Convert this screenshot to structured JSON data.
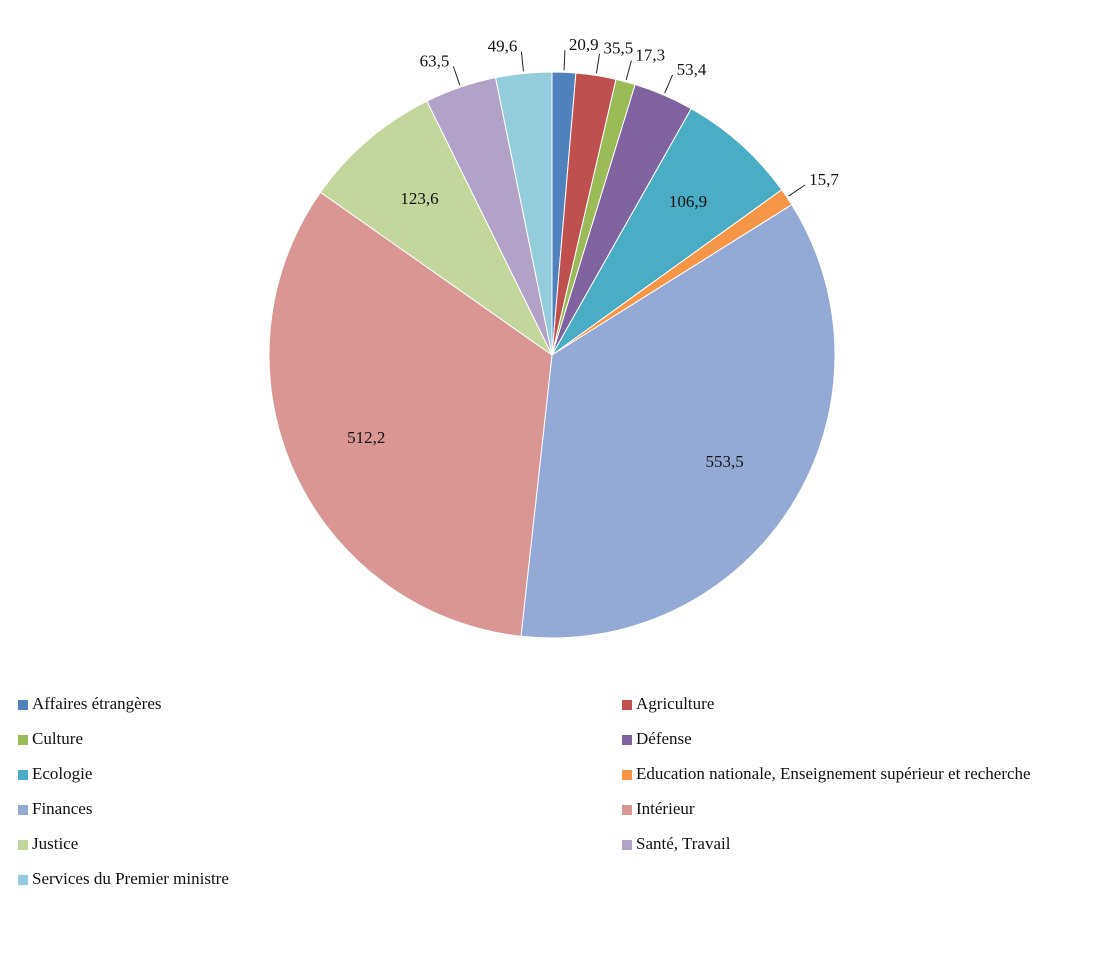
{
  "chart_data": {
    "type": "pie",
    "categories": [
      "Affaires étrangères",
      "Agriculture",
      "Culture",
      "Défense",
      "Ecologie",
      "Education nationale, Enseignement supérieur et recherche",
      "Finances",
      "Intérieur",
      "Justice",
      "Santé, Travail",
      "Services du Premier ministre"
    ],
    "values": [
      20.9,
      35.5,
      17.3,
      53.4,
      106.9,
      15.7,
      553.5,
      512.2,
      123.6,
      63.5,
      49.6
    ],
    "value_labels": [
      "20,9",
      "35,5",
      "17,3",
      "53,4",
      "106,9",
      "15,7",
      "553,5",
      "512,2",
      "123,6",
      "63,5",
      "49,6"
    ],
    "colors": [
      "#4F81BD",
      "#C0504D",
      "#9BBB59",
      "#8064A2",
      "#4BACC6",
      "#F79646",
      "#95A9D6",
      "#D99694",
      "#C3D69B",
      "#B2A2C7",
      "#93CDDD"
    ],
    "legend": "bottom"
  }
}
